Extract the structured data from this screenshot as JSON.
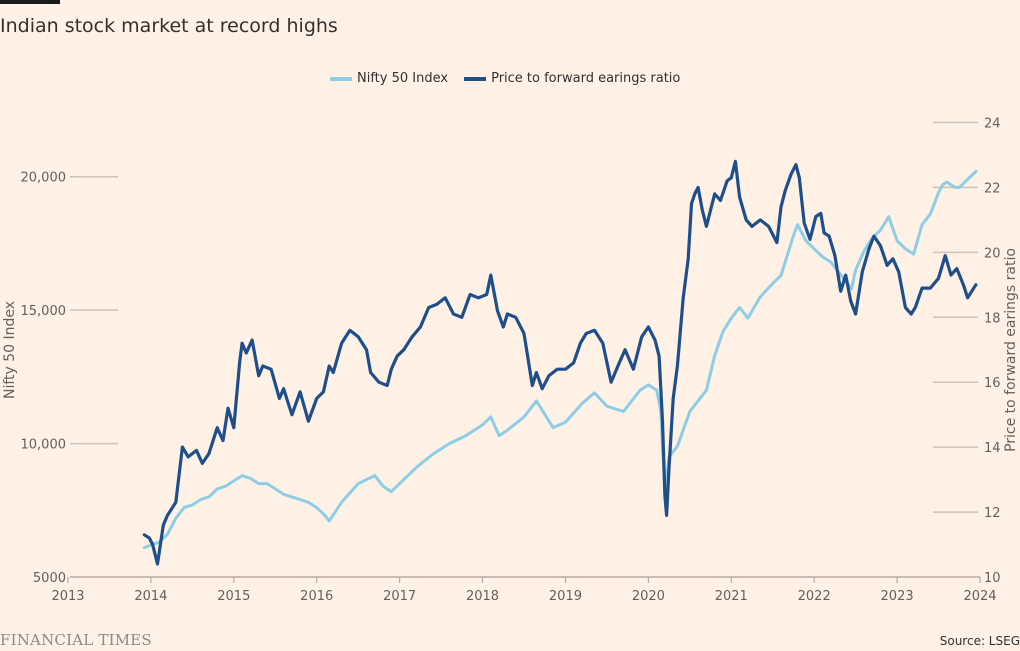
{
  "header": {
    "title": "Indian stock market at record highs"
  },
  "legend": {
    "items": [
      {
        "label": "Nifty 50 Index",
        "color": "#8dcde6"
      },
      {
        "label": "Price to forward earings ratio",
        "color": "#1e4f8a"
      }
    ]
  },
  "footer": {
    "brand": "FINANCIAL TIMES",
    "source": "Source: LSEG"
  },
  "chart_data": {
    "type": "line",
    "title": "Indian stock market at record highs",
    "x_ticks": [
      "2013",
      "2014",
      "2015",
      "2016",
      "2017",
      "2018",
      "2019",
      "2020",
      "2021",
      "2022",
      "2023",
      "2024"
    ],
    "xlim": [
      2013,
      2024
    ],
    "y_left": {
      "label": "Nifty 50 Index",
      "ticks": [
        "5000",
        "10,000",
        "15,000",
        "20,000"
      ],
      "tick_values": [
        5000,
        10000,
        15000,
        20000
      ],
      "range": [
        5000,
        22500
      ]
    },
    "y_right": {
      "label": "Price to forward earings ratio",
      "ticks": [
        "10",
        "12",
        "14",
        "16",
        "18",
        "20",
        "22",
        "24"
      ],
      "tick_values": [
        10,
        12,
        14,
        16,
        18,
        20,
        22,
        24
      ],
      "range": [
        10,
        24.6
      ]
    },
    "grid": "partial horizontal",
    "legend_position": "top-center",
    "series": [
      {
        "name": "Nifty 50 Index",
        "axis": "left",
        "color": "#8dcde6",
        "x": [
          2013.92,
          2014.0,
          2014.1,
          2014.2,
          2014.3,
          2014.4,
          2014.5,
          2014.6,
          2014.7,
          2014.8,
          2014.9,
          2015.0,
          2015.1,
          2015.2,
          2015.3,
          2015.4,
          2015.5,
          2015.6,
          2015.7,
          2015.8,
          2015.9,
          2016.0,
          2016.1,
          2016.15,
          2016.3,
          2016.5,
          2016.7,
          2016.8,
          2016.9,
          2017.0,
          2017.2,
          2017.4,
          2017.6,
          2017.8,
          2018.0,
          2018.1,
          2018.2,
          2018.3,
          2018.5,
          2018.65,
          2018.75,
          2018.85,
          2019.0,
          2019.2,
          2019.35,
          2019.5,
          2019.7,
          2019.9,
          2020.0,
          2020.1,
          2020.15,
          2020.2,
          2020.25,
          2020.35,
          2020.5,
          2020.7,
          2020.8,
          2020.9,
          2021.0,
          2021.1,
          2021.2,
          2021.35,
          2021.5,
          2021.6,
          2021.75,
          2021.8,
          2021.9,
          2022.0,
          2022.1,
          2022.2,
          2022.35,
          2022.45,
          2022.5,
          2022.6,
          2022.7,
          2022.8,
          2022.9,
          2023.0,
          2023.1,
          2023.2,
          2023.3,
          2023.4,
          2023.5,
          2023.55,
          2023.6,
          2023.7,
          2023.75,
          2023.85,
          2023.95
        ],
        "values": [
          6100,
          6200,
          6300,
          6600,
          7200,
          7600,
          7700,
          7900,
          8000,
          8300,
          8400,
          8600,
          8800,
          8700,
          8500,
          8500,
          8300,
          8100,
          8000,
          7900,
          7800,
          7600,
          7300,
          7100,
          7800,
          8500,
          8800,
          8400,
          8200,
          8500,
          9100,
          9600,
          10000,
          10300,
          10700,
          11000,
          10300,
          10500,
          11000,
          11600,
          11100,
          10600,
          10800,
          11500,
          11900,
          11400,
          11200,
          12000,
          12200,
          12000,
          11200,
          8200,
          9500,
          9900,
          11200,
          12000,
          13300,
          14200,
          14700,
          15100,
          14700,
          15500,
          16000,
          16300,
          17800,
          18200,
          17600,
          17300,
          17000,
          16800,
          16200,
          15800,
          16500,
          17200,
          17700,
          18000,
          18500,
          17600,
          17300,
          17100,
          18200,
          18600,
          19400,
          19700,
          19800,
          19600,
          19600,
          19900,
          20200
        ]
      },
      {
        "name": "Price to forward earings ratio",
        "axis": "right",
        "color": "#1e4f8a",
        "x": [
          2013.92,
          2013.98,
          2014.02,
          2014.08,
          2014.15,
          2014.2,
          2014.3,
          2014.38,
          2014.45,
          2014.55,
          2014.62,
          2014.7,
          2014.8,
          2014.87,
          2014.93,
          2015.0,
          2015.07,
          2015.1,
          2015.15,
          2015.22,
          2015.3,
          2015.35,
          2015.45,
          2015.55,
          2015.6,
          2015.7,
          2015.8,
          2015.9,
          2016.0,
          2016.08,
          2016.15,
          2016.2,
          2016.3,
          2016.4,
          2016.5,
          2016.6,
          2016.65,
          2016.75,
          2016.85,
          2016.9,
          2016.97,
          2017.05,
          2017.15,
          2017.25,
          2017.35,
          2017.45,
          2017.55,
          2017.65,
          2017.75,
          2017.85,
          2017.95,
          2018.05,
          2018.1,
          2018.18,
          2018.25,
          2018.3,
          2018.4,
          2018.5,
          2018.6,
          2018.65,
          2018.72,
          2018.8,
          2018.9,
          2019.0,
          2019.1,
          2019.18,
          2019.25,
          2019.35,
          2019.45,
          2019.55,
          2019.65,
          2019.72,
          2019.82,
          2019.92,
          2020.0,
          2020.08,
          2020.13,
          2020.17,
          2020.2,
          2020.22,
          2020.25,
          2020.3,
          2020.35,
          2020.42,
          2020.48,
          2020.52,
          2020.56,
          2020.6,
          2020.65,
          2020.7,
          2020.8,
          2020.87,
          2020.95,
          2021.0,
          2021.05,
          2021.1,
          2021.18,
          2021.25,
          2021.35,
          2021.45,
          2021.55,
          2021.6,
          2021.65,
          2021.72,
          2021.78,
          2021.82,
          2021.88,
          2021.95,
          2022.02,
          2022.08,
          2022.12,
          2022.18,
          2022.25,
          2022.32,
          2022.38,
          2022.44,
          2022.5,
          2022.58,
          2022.66,
          2022.72,
          2022.8,
          2022.88,
          2022.95,
          2023.02,
          2023.1,
          2023.17,
          2023.22,
          2023.3,
          2023.4,
          2023.5,
          2023.58,
          2023.65,
          2023.72,
          2023.8,
          2023.85,
          2023.9,
          2023.95
        ],
        "values": [
          11.3,
          11.2,
          11.0,
          10.4,
          11.6,
          11.9,
          12.3,
          14.0,
          13.7,
          13.9,
          13.5,
          13.8,
          14.6,
          14.2,
          15.2,
          14.6,
          16.6,
          17.2,
          16.9,
          17.3,
          16.2,
          16.5,
          16.4,
          15.5,
          15.8,
          15.0,
          15.7,
          14.8,
          15.5,
          15.7,
          16.5,
          16.3,
          17.2,
          17.6,
          17.4,
          17.0,
          16.3,
          16.0,
          15.9,
          16.4,
          16.8,
          17.0,
          17.4,
          17.7,
          18.3,
          18.4,
          18.6,
          18.1,
          18.0,
          18.7,
          18.6,
          18.7,
          19.3,
          18.2,
          17.7,
          18.1,
          18.0,
          17.5,
          15.9,
          16.3,
          15.8,
          16.2,
          16.4,
          16.4,
          16.6,
          17.2,
          17.5,
          17.6,
          17.2,
          16.0,
          16.6,
          17.0,
          16.4,
          17.4,
          17.7,
          17.3,
          16.8,
          14.8,
          12.5,
          11.9,
          13.4,
          15.5,
          16.5,
          18.6,
          19.8,
          21.5,
          21.8,
          22.0,
          21.3,
          20.8,
          21.8,
          21.6,
          22.2,
          22.3,
          22.8,
          21.7,
          21.0,
          20.8,
          21.0,
          20.8,
          20.3,
          21.4,
          21.9,
          22.4,
          22.7,
          22.3,
          20.9,
          20.4,
          21.1,
          21.2,
          20.6,
          20.5,
          19.9,
          18.8,
          19.3,
          18.5,
          18.1,
          19.4,
          20.1,
          20.5,
          20.2,
          19.6,
          19.8,
          19.4,
          18.3,
          18.1,
          18.3,
          18.9,
          18.9,
          19.2,
          19.9,
          19.3,
          19.5,
          19.0,
          18.6,
          18.8,
          19.0
        ]
      }
    ]
  }
}
